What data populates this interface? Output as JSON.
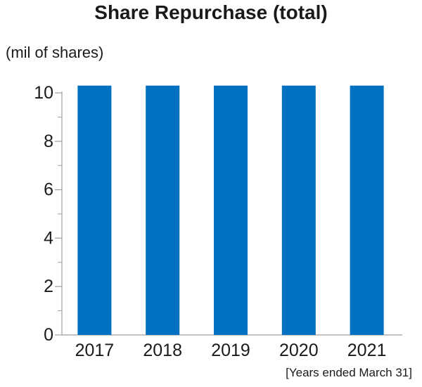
{
  "chart_data": {
    "type": "bar",
    "title": "Share Repurchase (total)",
    "unit_label": "(mil of shares)",
    "footnote": "[Years ended March 31]",
    "categories": [
      "2017",
      "2018",
      "2019",
      "2020",
      "2021"
    ],
    "values": [
      10.3,
      10.3,
      10.3,
      10.3,
      10.3
    ],
    "ylim": [
      0,
      10
    ],
    "yticks": [
      0,
      2,
      4,
      6,
      8,
      10
    ],
    "minor_ticks": [
      1,
      3,
      5,
      7,
      9
    ],
    "bar_color": "#0070c0",
    "axis_color": "#9e9e9e",
    "grid": false,
    "legend": "none"
  }
}
